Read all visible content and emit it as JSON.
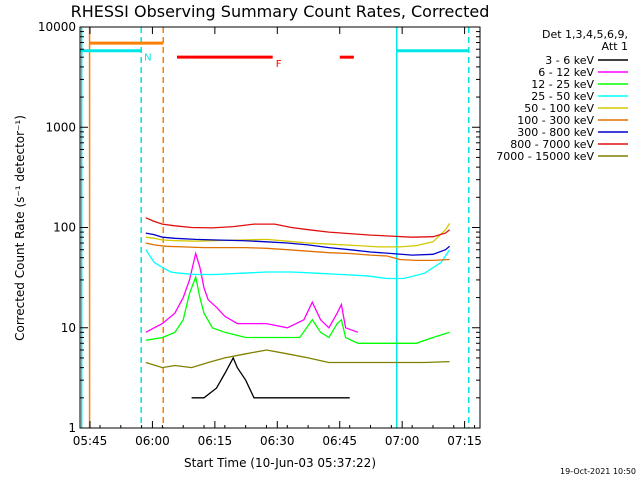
{
  "chart_data": {
    "type": "line",
    "title": "RHESSI Observing Summary Count Rates, Corrected",
    "xlabel": "Start Time (10-Jun-03 05:37:22)",
    "ylabel": "Corrected Count Rate (s⁻¹ detector⁻¹)",
    "ylog": true,
    "ylim": [
      1,
      10000
    ],
    "xlim_minutes": [
      5.2,
      101.3
    ],
    "x_tick_labels": [
      "05:45",
      "06:00",
      "06:15",
      "06:30",
      "06:45",
      "07:00",
      "07:15"
    ],
    "x_ticks_minutes": [
      7.6,
      22.6,
      37.6,
      52.6,
      67.6,
      82.6,
      97.6
    ],
    "y_tick_labels": [
      "1",
      "10",
      "100",
      "1000",
      "10000"
    ],
    "y_ticks": [
      1,
      10,
      100,
      1000,
      10000
    ],
    "legend": {
      "placement": "right",
      "header1": "Det 1,3,4,5,6,9,",
      "header2": "Att 1",
      "entries": [
        {
          "label": "3 - 6 keV",
          "color": "#000000"
        },
        {
          "label": "6 - 12 keV",
          "color": "#ff00ff"
        },
        {
          "label": "12 - 25 keV",
          "color": "#00ff00"
        },
        {
          "label": "25 - 50 keV",
          "color": "#00ffff"
        },
        {
          "label": "50 - 100 keV",
          "color": "#d4c800"
        },
        {
          "label": "100 - 300 keV",
          "color": "#e07000"
        },
        {
          "label": "300 - 800 keV",
          "color": "#0000cc"
        },
        {
          "label": "800 - 7000 keV",
          "color": "#e01010"
        },
        {
          "label": "7000 - 15000 keV",
          "color": "#808000"
        }
      ]
    },
    "series": [
      {
        "name": "3 - 6 keV",
        "color": "#000000",
        "points": [
          [
            32,
            2
          ],
          [
            35,
            2
          ],
          [
            38,
            2.5
          ],
          [
            40,
            3.5
          ],
          [
            42,
            5
          ],
          [
            43,
            4
          ],
          [
            45,
            3
          ],
          [
            47,
            2
          ],
          [
            50,
            2
          ],
          [
            55,
            2
          ],
          [
            60,
            2
          ],
          [
            65,
            2
          ],
          [
            70,
            2
          ]
        ]
      },
      {
        "name": "6 - 12 keV",
        "color": "#ff00ff",
        "points": [
          [
            21,
            9
          ],
          [
            23,
            10
          ],
          [
            25,
            11
          ],
          [
            28,
            14
          ],
          [
            30,
            20
          ],
          [
            31.5,
            30
          ],
          [
            33,
            55
          ],
          [
            34,
            40
          ],
          [
            35,
            25
          ],
          [
            36,
            19
          ],
          [
            38,
            16
          ],
          [
            40,
            13
          ],
          [
            43,
            11
          ],
          [
            46,
            11
          ],
          [
            50,
            11
          ],
          [
            55,
            10
          ],
          [
            59,
            12
          ],
          [
            61,
            18
          ],
          [
            63,
            12
          ],
          [
            65,
            10
          ],
          [
            67,
            14
          ],
          [
            68,
            17
          ],
          [
            69,
            10
          ],
          [
            72,
            9
          ]
        ]
      },
      {
        "name": "12 - 25 keV",
        "color": "#00ff00",
        "points": [
          [
            21,
            7.5
          ],
          [
            25,
            8
          ],
          [
            28,
            9
          ],
          [
            30,
            12
          ],
          [
            31.5,
            22
          ],
          [
            33,
            32
          ],
          [
            34,
            20
          ],
          [
            35,
            14
          ],
          [
            37,
            10
          ],
          [
            40,
            9
          ],
          [
            45,
            8
          ],
          [
            50,
            8
          ],
          [
            55,
            8
          ],
          [
            58,
            8
          ],
          [
            61,
            12
          ],
          [
            63,
            9
          ],
          [
            65,
            8
          ],
          [
            67,
            11
          ],
          [
            68,
            12
          ],
          [
            69,
            8
          ],
          [
            72,
            7
          ],
          [
            80,
            7
          ],
          [
            86,
            7
          ],
          [
            90,
            8
          ],
          [
            94,
            9
          ]
        ]
      },
      {
        "name": "25 - 50 keV",
        "color": "#00ffff",
        "points": [
          [
            21,
            60
          ],
          [
            23,
            45
          ],
          [
            25,
            40
          ],
          [
            27,
            36
          ],
          [
            29,
            35
          ],
          [
            33,
            34
          ],
          [
            38,
            34
          ],
          [
            44,
            35
          ],
          [
            50,
            36
          ],
          [
            56,
            36
          ],
          [
            62,
            35
          ],
          [
            68,
            34
          ],
          [
            74,
            33
          ],
          [
            79,
            31
          ],
          [
            83,
            31
          ],
          [
            88,
            35
          ],
          [
            92,
            45
          ],
          [
            94,
            60
          ]
        ]
      },
      {
        "name": "50 - 100 keV",
        "color": "#d4c800",
        "points": [
          [
            21,
            80
          ],
          [
            23,
            78
          ],
          [
            25,
            75
          ],
          [
            28,
            74
          ],
          [
            33,
            73
          ],
          [
            38,
            74
          ],
          [
            44,
            75
          ],
          [
            50,
            76
          ],
          [
            55,
            73
          ],
          [
            60,
            70
          ],
          [
            66,
            68
          ],
          [
            72,
            66
          ],
          [
            77,
            64
          ],
          [
            82,
            64
          ],
          [
            86,
            66
          ],
          [
            90,
            72
          ],
          [
            93,
            95
          ],
          [
            94,
            110
          ]
        ]
      },
      {
        "name": "100 - 300 keV",
        "color": "#e07000",
        "points": [
          [
            21,
            70
          ],
          [
            23,
            67
          ],
          [
            26,
            65
          ],
          [
            30,
            64
          ],
          [
            35,
            63
          ],
          [
            40,
            63
          ],
          [
            45,
            63
          ],
          [
            50,
            62
          ],
          [
            55,
            60
          ],
          [
            60,
            58
          ],
          [
            65,
            56
          ],
          [
            70,
            55
          ],
          [
            75,
            53
          ],
          [
            79,
            52
          ],
          [
            82,
            48
          ],
          [
            86,
            47
          ],
          [
            90,
            47
          ],
          [
            94,
            48
          ]
        ]
      },
      {
        "name": "300 - 800 keV",
        "color": "#0000cc",
        "points": [
          [
            21,
            88
          ],
          [
            23,
            85
          ],
          [
            25,
            80
          ],
          [
            28,
            78
          ],
          [
            33,
            76
          ],
          [
            38,
            75
          ],
          [
            44,
            74
          ],
          [
            50,
            72
          ],
          [
            55,
            70
          ],
          [
            60,
            67
          ],
          [
            65,
            63
          ],
          [
            70,
            60
          ],
          [
            75,
            57
          ],
          [
            80,
            55
          ],
          [
            85,
            53
          ],
          [
            90,
            54
          ],
          [
            93,
            60
          ],
          [
            94,
            65
          ]
        ]
      },
      {
        "name": "800 - 7000 keV",
        "color": "#e01010",
        "points": [
          [
            21,
            125
          ],
          [
            23,
            115
          ],
          [
            25,
            108
          ],
          [
            28,
            104
          ],
          [
            32,
            100
          ],
          [
            37,
            99
          ],
          [
            42,
            102
          ],
          [
            47,
            108
          ],
          [
            52,
            108
          ],
          [
            56,
            100
          ],
          [
            60,
            95
          ],
          [
            65,
            90
          ],
          [
            70,
            87
          ],
          [
            75,
            84
          ],
          [
            80,
            82
          ],
          [
            85,
            80
          ],
          [
            90,
            81
          ],
          [
            93,
            88
          ],
          [
            94,
            95
          ]
        ]
      },
      {
        "name": "7000 - 15000 keV",
        "color": "#808000",
        "points": [
          [
            21,
            4.5
          ],
          [
            25,
            4
          ],
          [
            28,
            4.2
          ],
          [
            32,
            4
          ],
          [
            36,
            4.5
          ],
          [
            40,
            5
          ],
          [
            45,
            5.5
          ],
          [
            50,
            6
          ],
          [
            55,
            5.5
          ],
          [
            60,
            5
          ],
          [
            65,
            4.5
          ],
          [
            70,
            4.5
          ],
          [
            76,
            4.5
          ],
          [
            82,
            4.5
          ],
          [
            88,
            4.5
          ],
          [
            94,
            4.6
          ]
        ]
      }
    ],
    "flags": [
      {
        "label": "N",
        "color": "#00e5e5",
        "ranges": [
          [
            5.2,
            19.9
          ],
          [
            81.3,
            98.6
          ]
        ],
        "value": 5800
      },
      {
        "label": "",
        "color": "#ff7f00",
        "ranges": [
          [
            7.5,
            25.2
          ]
        ],
        "value": 6900
      },
      {
        "label": "F",
        "color": "#ff0000",
        "ranges": [
          [
            28.5,
            51.5
          ],
          [
            67.6,
            71.0
          ]
        ],
        "value": 5000
      }
    ],
    "vertical_markers": [
      {
        "x": 5.6,
        "color": "#00e5e5",
        "style": "solid"
      },
      {
        "x": 7.5,
        "color": "#ff7f00",
        "style": "solid"
      },
      {
        "x": 19.9,
        "color": "#00e5e5",
        "style": "dashed"
      },
      {
        "x": 25.2,
        "color": "#ff7f00",
        "style": "dashed"
      },
      {
        "x": 81.3,
        "color": "#00e5e5",
        "style": "solid"
      },
      {
        "x": 98.6,
        "color": "#00e5e5",
        "style": "dashed"
      }
    ]
  },
  "footer_date": "19-Oct-2021 10:50"
}
